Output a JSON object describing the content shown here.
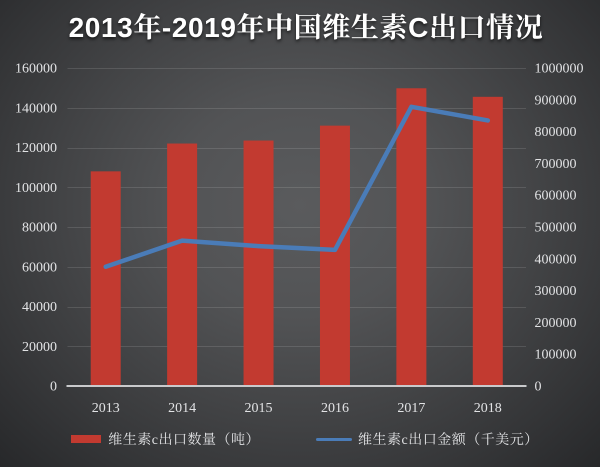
{
  "chart_data": {
    "type": "combo",
    "title": "2013年-2019年中国维生素C出口情况",
    "categories": [
      "2013",
      "2014",
      "2015",
      "2016",
      "2017",
      "2018"
    ],
    "series": [
      {
        "name": "维生素c出口数量（吨）",
        "type": "bar",
        "axis": "left",
        "color": "#c23a30",
        "values": [
          108000,
          122000,
          123500,
          131000,
          149800,
          145500
        ]
      },
      {
        "name": "维生素c出口金额（千美元）",
        "type": "line",
        "axis": "right",
        "color": "#4a7cb8",
        "values": [
          375000,
          457000,
          440000,
          428000,
          878000,
          835000
        ]
      }
    ],
    "axes": {
      "left": {
        "min": 0,
        "max": 160000,
        "step": 20000
      },
      "right": {
        "min": 0,
        "max": 1000000,
        "step": 100000
      }
    },
    "grid": true,
    "legend_position": "bottom"
  },
  "legend": {
    "items": [
      {
        "label": "维生素c出口数量（吨）",
        "swatch": "bar-swatch",
        "color": "#c23a30"
      },
      {
        "label": "维生素c出口金额（千美元）",
        "swatch": "line-swatch",
        "color": "#4a7cb8"
      }
    ]
  },
  "style": {
    "background_center": "#5a5b5d",
    "background_edge": "#2b2c2e",
    "grid_color": "rgba(255,255,255,0.12)",
    "axis_line_color": "#c9cacc",
    "tick_label_color": "#e2e3e5",
    "title_color": "#ffffff"
  }
}
